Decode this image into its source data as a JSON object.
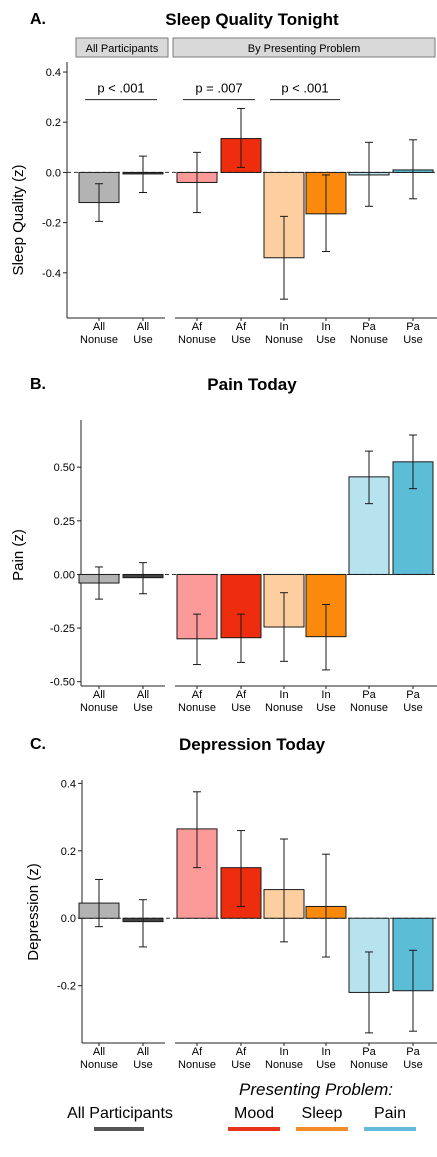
{
  "colors": {
    "all_nonuse": "#b3b3b3",
    "all_use": "#444444",
    "mood_nonuse": "#fc9a9a",
    "mood_use": "#ee2c0e",
    "sleep_nonuse": "#fdcfa0",
    "sleep_use": "#fb8a0c",
    "pain_nonuse": "#b7e3ef",
    "pain_use": "#5bbdd6",
    "legend_all": "#555555",
    "legend_mood": "#e8321a",
    "legend_sleep": "#f28c28",
    "legend_pain": "#64b9dd"
  },
  "x_labels": [
    [
      "All",
      "Nonuse"
    ],
    [
      "All",
      "Use"
    ],
    [
      "Af",
      "Nonuse"
    ],
    [
      "Af",
      "Use"
    ],
    [
      "In",
      "Nonuse"
    ],
    [
      "In",
      "Use"
    ],
    [
      "Pa",
      "Nonuse"
    ],
    [
      "Pa",
      "Use"
    ]
  ],
  "chart_data": [
    {
      "type": "bar",
      "letter": "A.",
      "title": "Sleep Quality Tonight",
      "ylabel": "Sleep Quality (z)",
      "strips": [
        "All Participants",
        "By Presenting Problem"
      ],
      "ylim": [
        -0.58,
        0.44
      ],
      "yticks": [
        -0.4,
        -0.2,
        0.0,
        0.2,
        0.4
      ],
      "ytick_labels": [
        "-0.4",
        "-0.2",
        "0.0",
        "0.2",
        "0.4"
      ],
      "values": [
        -0.12,
        -0.005,
        -0.04,
        0.135,
        -0.34,
        -0.165,
        -0.01,
        0.01
      ],
      "err_low": [
        -0.195,
        -0.08,
        -0.16,
        0.02,
        -0.505,
        -0.315,
        -0.135,
        -0.105
      ],
      "err_high": [
        -0.045,
        0.065,
        0.08,
        0.255,
        -0.175,
        -0.01,
        0.12,
        0.13
      ],
      "annotations": [
        {
          "text": "p < .001",
          "from": 0,
          "to": 1,
          "y": 0.29
        },
        {
          "text": "p = .007",
          "from": 2,
          "to": 3,
          "y": 0.29
        },
        {
          "text": "p < .001",
          "from": 4,
          "to": 5,
          "y": 0.29
        }
      ],
      "grid": false
    },
    {
      "type": "bar",
      "letter": "B.",
      "title": "Pain Today",
      "ylabel": "Pain (z)",
      "ylim": [
        -0.52,
        0.72
      ],
      "yticks": [
        -0.5,
        -0.25,
        0.0,
        0.25,
        0.5
      ],
      "ytick_labels": [
        "-0.50",
        "-0.25",
        "0.00",
        "0.25",
        "0.50"
      ],
      "values": [
        -0.04,
        -0.015,
        -0.3,
        -0.295,
        -0.245,
        -0.29,
        0.455,
        0.525
      ],
      "err_low": [
        -0.115,
        -0.09,
        -0.42,
        -0.41,
        -0.405,
        -0.445,
        0.33,
        0.4
      ],
      "err_high": [
        0.035,
        0.055,
        -0.185,
        -0.185,
        -0.085,
        -0.14,
        0.575,
        0.65
      ],
      "grid": false
    },
    {
      "type": "bar",
      "letter": "C.",
      "title": "Depression Today",
      "ylabel": "Depression (z)",
      "ylim": [
        -0.37,
        0.41
      ],
      "yticks": [
        -0.2,
        0.0,
        0.2,
        0.4
      ],
      "ytick_labels": [
        "-0.2",
        "0.0",
        "0.2",
        "0.4"
      ],
      "values": [
        0.045,
        -0.01,
        0.265,
        0.15,
        0.085,
        0.035,
        -0.22,
        -0.215
      ],
      "err_low": [
        -0.025,
        -0.085,
        0.15,
        0.035,
        -0.07,
        -0.115,
        -0.34,
        -0.335
      ],
      "err_high": [
        0.115,
        0.055,
        0.375,
        0.26,
        0.235,
        0.19,
        -0.1,
        -0.095
      ],
      "grid": false
    }
  ],
  "legend": {
    "all_label": "All Participants",
    "heading": "Presenting Problem:",
    "items": [
      "Mood",
      "Sleep",
      "Pain"
    ]
  }
}
